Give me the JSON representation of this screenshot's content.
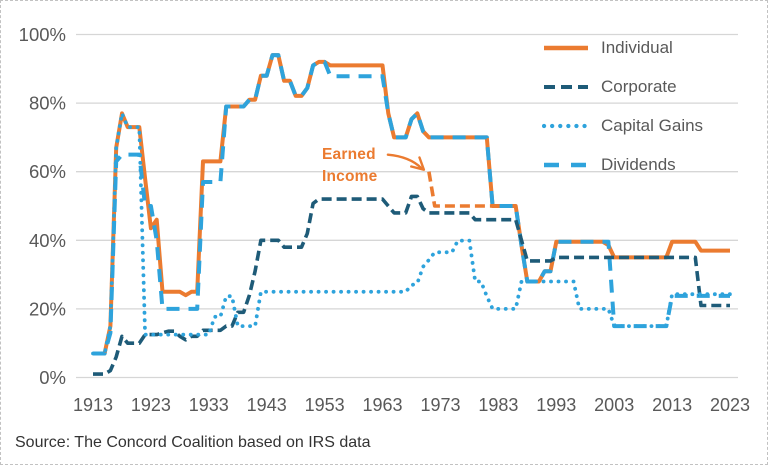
{
  "source": "Source: The Concord Coalition based on IRS data",
  "colors": {
    "orange": "#EB7B30",
    "dark_blue": "#1E5B78",
    "light_blue": "#2EA3DC",
    "grid": "#D6D6D6",
    "axis_text": "#595959",
    "source_text": "#333333"
  },
  "chart_data": {
    "type": "line",
    "title": "",
    "x_axis": {
      "label": "",
      "tick_labels": [
        "1913",
        "1923",
        "1933",
        "1943",
        "1953",
        "1963",
        "1973",
        "1983",
        "1993",
        "2003",
        "2013",
        "2023"
      ],
      "tick_values": [
        1913,
        1923,
        1933,
        1943,
        1953,
        1963,
        1973,
        1983,
        1993,
        2003,
        2013,
        2023
      ],
      "range": [
        1913,
        2023
      ]
    },
    "y_axis": {
      "label": "",
      "tick_labels": [
        "0%",
        "20%",
        "40%",
        "60%",
        "80%",
        "100%"
      ],
      "tick_values": [
        0,
        20,
        40,
        60,
        80,
        100
      ],
      "range": [
        0,
        100
      ],
      "grid": true
    },
    "legend_position": "top-right",
    "annotation": {
      "line1": "Earned",
      "line2": "Income",
      "target_year": 1971,
      "target_value": 60
    },
    "series": [
      {
        "name": "Individual",
        "color": "#EB7B30",
        "style": "solid",
        "in_legend": true,
        "segments": [
          [
            1913,
            1915,
            7
          ],
          [
            1916,
            1916,
            15
          ],
          [
            1917,
            1917,
            67
          ],
          [
            1918,
            1918,
            77
          ],
          [
            1919,
            1921,
            73
          ],
          [
            1922,
            1922,
            58
          ],
          [
            1923,
            1923,
            43.5
          ],
          [
            1924,
            1924,
            46
          ],
          [
            1925,
            1928,
            25
          ],
          [
            1929,
            1929,
            24
          ],
          [
            1930,
            1931,
            25
          ],
          [
            1932,
            1935,
            63
          ],
          [
            1936,
            1939,
            79
          ],
          [
            1940,
            1941,
            81
          ],
          [
            1942,
            1943,
            88
          ],
          [
            1944,
            1945,
            94
          ],
          [
            1946,
            1947,
            86.5
          ],
          [
            1948,
            1949,
            82.1
          ],
          [
            1950,
            1950,
            84.4
          ],
          [
            1951,
            1951,
            91
          ],
          [
            1952,
            1953,
            92
          ],
          [
            1954,
            1963,
            91
          ],
          [
            1964,
            1964,
            77
          ],
          [
            1965,
            1967,
            70
          ],
          [
            1968,
            1968,
            75.3
          ],
          [
            1969,
            1969,
            77
          ],
          [
            1970,
            1970,
            71.8
          ],
          [
            1971,
            1981,
            70
          ],
          [
            1982,
            1986,
            50
          ],
          [
            1987,
            1987,
            38.5
          ],
          [
            1988,
            1990,
            28
          ],
          [
            1991,
            1992,
            31
          ],
          [
            1993,
            2001,
            39.6
          ],
          [
            2002,
            2002,
            38.6
          ],
          [
            2003,
            2012,
            35
          ],
          [
            2013,
            2017,
            39.6
          ],
          [
            2018,
            2023,
            37
          ]
        ]
      },
      {
        "name": "Corporate",
        "color": "#1E5B78",
        "style": "dash",
        "in_legend": true,
        "segments": [
          [
            1913,
            1915,
            1
          ],
          [
            1916,
            1916,
            2
          ],
          [
            1917,
            1917,
            6
          ],
          [
            1918,
            1918,
            12
          ],
          [
            1919,
            1921,
            10
          ],
          [
            1922,
            1924,
            12.5
          ],
          [
            1925,
            1925,
            13
          ],
          [
            1926,
            1927,
            13.5
          ],
          [
            1928,
            1928,
            12
          ],
          [
            1929,
            1929,
            11
          ],
          [
            1930,
            1931,
            12
          ],
          [
            1932,
            1935,
            13.75
          ],
          [
            1936,
            1937,
            15
          ],
          [
            1938,
            1939,
            19
          ],
          [
            1940,
            1940,
            24
          ],
          [
            1941,
            1941,
            31
          ],
          [
            1942,
            1945,
            40
          ],
          [
            1946,
            1949,
            38
          ],
          [
            1950,
            1950,
            42
          ],
          [
            1951,
            1951,
            50.75
          ],
          [
            1952,
            1963,
            52
          ],
          [
            1964,
            1964,
            50
          ],
          [
            1965,
            1967,
            48
          ],
          [
            1968,
            1969,
            52.8
          ],
          [
            1970,
            1970,
            49.2
          ],
          [
            1971,
            1978,
            48
          ],
          [
            1979,
            1986,
            46
          ],
          [
            1987,
            1987,
            40
          ],
          [
            1988,
            1992,
            34
          ],
          [
            1993,
            2017,
            35
          ],
          [
            2018,
            2023,
            21
          ]
        ]
      },
      {
        "name": "Capital Gains",
        "color": "#2EA3DC",
        "style": "dot",
        "in_legend": true,
        "segments": [
          [
            1913,
            1915,
            7
          ],
          [
            1916,
            1916,
            15
          ],
          [
            1917,
            1917,
            67
          ],
          [
            1918,
            1918,
            77
          ],
          [
            1919,
            1921,
            73
          ],
          [
            1922,
            1933,
            12.5
          ],
          [
            1934,
            1935,
            17.7
          ],
          [
            1936,
            1937,
            23.7
          ],
          [
            1938,
            1941,
            15
          ],
          [
            1942,
            1967,
            25
          ],
          [
            1968,
            1968,
            26.9
          ],
          [
            1969,
            1969,
            27.5
          ],
          [
            1970,
            1970,
            32.3
          ],
          [
            1971,
            1971,
            34.3
          ],
          [
            1972,
            1975,
            36.5
          ],
          [
            1976,
            1978,
            39.9
          ],
          [
            1979,
            1980,
            28
          ],
          [
            1981,
            1981,
            23.7
          ],
          [
            1982,
            1986,
            20
          ],
          [
            1987,
            1996,
            28
          ],
          [
            1997,
            2002,
            20
          ],
          [
            2003,
            2012,
            15
          ],
          [
            2013,
            2023,
            24.3
          ]
        ]
      },
      {
        "name": "Dividends",
        "color": "#2EA3DC",
        "style": "longdash",
        "in_legend": true,
        "segments": [
          [
            1913,
            1915,
            7
          ],
          [
            1916,
            1916,
            13
          ],
          [
            1917,
            1917,
            63
          ],
          [
            1918,
            1921,
            65
          ],
          [
            1922,
            1923,
            50
          ],
          [
            1924,
            1924,
            40
          ],
          [
            1925,
            1931,
            20
          ],
          [
            1932,
            1935,
            57
          ],
          [
            1936,
            1939,
            79
          ],
          [
            1940,
            1941,
            81
          ],
          [
            1942,
            1943,
            88
          ],
          [
            1944,
            1945,
            94
          ],
          [
            1946,
            1947,
            86.5
          ],
          [
            1948,
            1949,
            82.1
          ],
          [
            1950,
            1950,
            84.4
          ],
          [
            1951,
            1951,
            91
          ],
          [
            1952,
            1953,
            92
          ],
          [
            1954,
            1963,
            87.8
          ],
          [
            1964,
            1964,
            77
          ],
          [
            1965,
            1967,
            70
          ],
          [
            1968,
            1968,
            75.3
          ],
          [
            1969,
            1969,
            77
          ],
          [
            1970,
            1970,
            71.8
          ],
          [
            1971,
            1981,
            70
          ],
          [
            1982,
            1986,
            50
          ],
          [
            1987,
            1987,
            38.5
          ],
          [
            1988,
            1990,
            28
          ],
          [
            1991,
            1992,
            31
          ],
          [
            1993,
            2002,
            39.6
          ],
          [
            2003,
            2012,
            15
          ],
          [
            2013,
            2023,
            23.8
          ]
        ]
      },
      {
        "name": "Earned Income",
        "color": "#EB7B30",
        "style": "dash",
        "in_legend": false,
        "segments": [
          [
            1971,
            1971,
            60
          ],
          [
            1972,
            1982,
            50
          ]
        ]
      }
    ]
  },
  "legend": {
    "items": [
      {
        "label": "Individual"
      },
      {
        "label": "Corporate"
      },
      {
        "label": "Capital Gains"
      },
      {
        "label": "Dividends"
      }
    ]
  }
}
